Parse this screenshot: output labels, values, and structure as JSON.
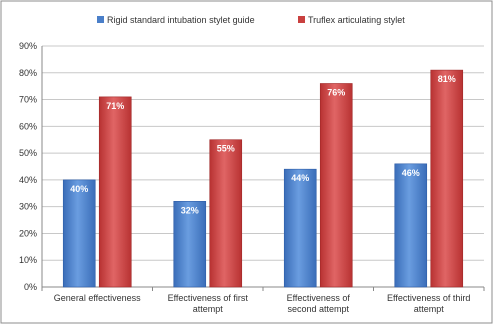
{
  "chart_data": {
    "type": "bar",
    "title": "",
    "xlabel": "",
    "ylabel": "",
    "categories": [
      "General effectiveness",
      "Effectiveness of first attempt",
      "Effectiveness of second attempt",
      "Effectiveness of third attempt"
    ],
    "series": [
      {
        "name": "Rigid standard intubation stylet guide",
        "values": [
          40,
          32,
          44,
          46
        ],
        "labels": [
          "40%",
          "32%",
          "44%",
          "46%"
        ],
        "color": "#4a7fc9"
      },
      {
        "name": "Truflex articulating stylet",
        "values": [
          71,
          55,
          76,
          81
        ],
        "labels": [
          "71%",
          "55%",
          "76%",
          "81%"
        ],
        "color": "#c9403f"
      }
    ],
    "ylim": [
      0,
      90
    ],
    "y_ticks": [
      "0%",
      "10%",
      "20%",
      "30%",
      "40%",
      "50%",
      "60%",
      "70%",
      "80%",
      "90%"
    ],
    "grid": true,
    "legend_position": "top"
  }
}
